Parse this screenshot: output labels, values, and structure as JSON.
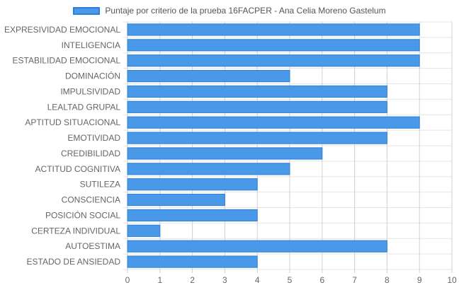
{
  "chart_data": {
    "type": "bar",
    "orientation": "horizontal",
    "title": "",
    "xlabel": "",
    "ylabel": "",
    "xlim": [
      0,
      10
    ],
    "x_ticks": [
      "0",
      "1",
      "2",
      "3",
      "4",
      "5",
      "6",
      "7",
      "8",
      "9",
      "10"
    ],
    "grid": true,
    "legend_position": "top-center",
    "categories": [
      "EXPRESIVIDAD EMOCIONAL",
      "INTELIGENCIA",
      "ESTABILIDAD EMOCIONAL",
      "DOMINACIÓN",
      "IMPULSIVIDAD",
      "LEALTAD GRUPAL",
      "APTITUD SITUACIONAL",
      "EMOTIVIDAD",
      "CREDIBILIDAD",
      "ACTITUD COGNITIVA",
      "SUTILEZA",
      "CONSCIENCIA",
      "POSICIÓN SOCIAL",
      "CERTEZA INDIVIDUAL",
      "AUTOESTIMA",
      "ESTADO DE ANSIEDAD"
    ],
    "series": [
      {
        "name": "Puntaje por criterio de la prueba 16FACPER - Ana Celia Moreno Gastelum",
        "values": [
          9,
          9,
          9,
          5,
          8,
          8,
          9,
          8,
          6,
          5,
          4,
          3,
          4,
          1,
          8,
          4
        ],
        "color": "#4a98e8",
        "border_color": "#2f7fd6"
      }
    ]
  }
}
